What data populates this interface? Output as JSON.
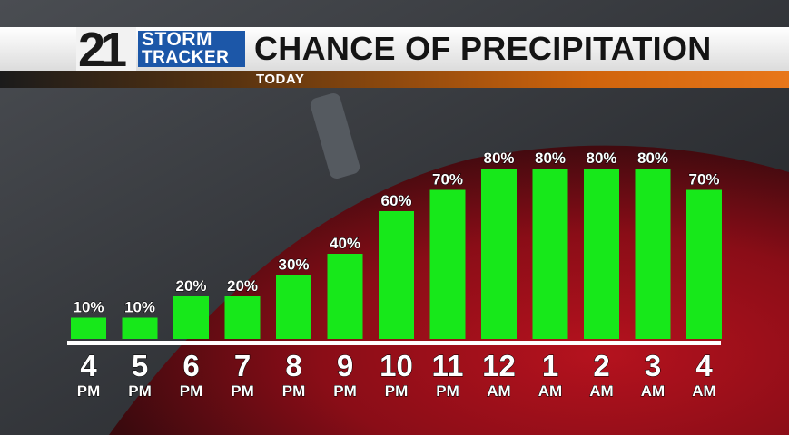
{
  "logo": {
    "number": "21",
    "line1": "STORM",
    "line2": "TRACKER"
  },
  "header": {
    "title": "CHANCE OF PRECIPITATION",
    "subtitle": "TODAY"
  },
  "colors": {
    "bar": "#17e81a",
    "accent": "#e8771a",
    "logo_blue": "#1c57a8"
  },
  "chart_data": {
    "type": "bar",
    "title": "CHANCE OF PRECIPITATION",
    "subtitle": "TODAY",
    "categories": [
      {
        "hour": "4",
        "period": "PM"
      },
      {
        "hour": "5",
        "period": "PM"
      },
      {
        "hour": "6",
        "period": "PM"
      },
      {
        "hour": "7",
        "period": "PM"
      },
      {
        "hour": "8",
        "period": "PM"
      },
      {
        "hour": "9",
        "period": "PM"
      },
      {
        "hour": "10",
        "period": "PM"
      },
      {
        "hour": "11",
        "period": "PM"
      },
      {
        "hour": "12",
        "period": "AM"
      },
      {
        "hour": "1",
        "period": "AM"
      },
      {
        "hour": "2",
        "period": "AM"
      },
      {
        "hour": "3",
        "period": "AM"
      },
      {
        "hour": "4",
        "period": "AM"
      }
    ],
    "values": [
      10,
      10,
      20,
      20,
      30,
      40,
      60,
      70,
      80,
      80,
      80,
      80,
      70
    ],
    "value_labels": [
      "10%",
      "10%",
      "20%",
      "20%",
      "30%",
      "40%",
      "60%",
      "70%",
      "80%",
      "80%",
      "80%",
      "80%",
      "70%"
    ],
    "ylim": [
      0,
      100
    ],
    "grid": false,
    "legend": "none"
  }
}
